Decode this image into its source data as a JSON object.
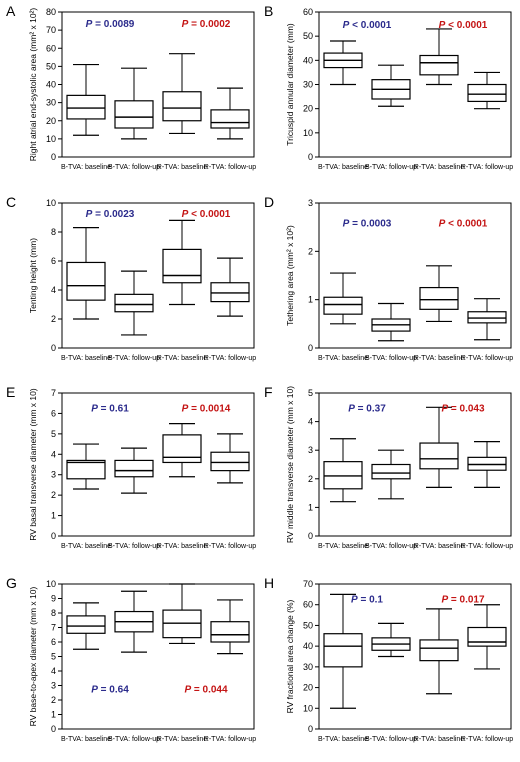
{
  "chart_data": [
    {
      "panel": "A",
      "type": "box",
      "ylabel": "Right atrial end-systolic area (mm² x 10²)",
      "ylim": [
        0,
        80
      ],
      "yticks": [
        0,
        10,
        20,
        30,
        40,
        50,
        60,
        70,
        80
      ],
      "categories": [
        "B-TVA: baseline",
        "B-TVA: follow-up",
        "R-TVA: baseline",
        "R-TVA: follow-up"
      ],
      "boxes": [
        {
          "min": 12,
          "q1": 21,
          "median": 27,
          "q3": 34,
          "max": 51
        },
        {
          "min": 10,
          "q1": 16,
          "median": 22,
          "q3": 31,
          "max": 49
        },
        {
          "min": 13,
          "q1": 20,
          "median": 27,
          "q3": 36,
          "max": 57
        },
        {
          "min": 10,
          "q1": 16,
          "median": 19,
          "q3": 26,
          "max": 38
        }
      ],
      "annotations": [
        {
          "text": "P = 0.0089",
          "group": "B-TVA",
          "color": "#2b2b8c",
          "y": 74
        },
        {
          "text": "P = 0.0002",
          "group": "R-TVA",
          "color": "#c41414",
          "y": 74
        }
      ]
    },
    {
      "panel": "B",
      "type": "box",
      "ylabel": "Tricuspid annular diameter (mm)",
      "ylim": [
        0,
        60
      ],
      "yticks": [
        0,
        10,
        20,
        30,
        40,
        50,
        60
      ],
      "categories": [
        "B-TVA: baseline",
        "B-TVA: follow-up",
        "R-TVA: baseline",
        "R-TVA: follow-up"
      ],
      "boxes": [
        {
          "min": 30,
          "q1": 37,
          "median": 40,
          "q3": 43,
          "max": 48
        },
        {
          "min": 21,
          "q1": 24,
          "median": 28,
          "q3": 32,
          "max": 38
        },
        {
          "min": 30,
          "q1": 34,
          "median": 39,
          "q3": 42,
          "max": 53
        },
        {
          "min": 20,
          "q1": 23,
          "median": 26,
          "q3": 30,
          "max": 35
        }
      ],
      "annotations": [
        {
          "text": "P < 0.0001",
          "group": "B-TVA",
          "color": "#2b2b8c",
          "y": 55
        },
        {
          "text": "P < 0.0001",
          "group": "R-TVA",
          "color": "#c41414",
          "y": 55
        }
      ]
    },
    {
      "panel": "C",
      "type": "box",
      "ylabel": "Tenting height (mm)",
      "ylim": [
        0,
        10
      ],
      "yticks": [
        0,
        2,
        4,
        6,
        8,
        10
      ],
      "categories": [
        "B-TVA: baseline",
        "B-TVA: follow-up",
        "R-TVA: baseline",
        "R-TVA: follow-up"
      ],
      "boxes": [
        {
          "min": 2.0,
          "q1": 3.3,
          "median": 4.3,
          "q3": 5.9,
          "max": 8.3
        },
        {
          "min": 0.9,
          "q1": 2.5,
          "median": 3.0,
          "q3": 3.7,
          "max": 5.3
        },
        {
          "min": 3.0,
          "q1": 4.5,
          "median": 5.0,
          "q3": 6.8,
          "max": 8.8
        },
        {
          "min": 2.2,
          "q1": 3.2,
          "median": 3.8,
          "q3": 4.5,
          "max": 6.2
        }
      ],
      "annotations": [
        {
          "text": "P = 0.0023",
          "group": "B-TVA",
          "color": "#2b2b8c",
          "y": 9.3
        },
        {
          "text": "P < 0.0001",
          "group": "R-TVA",
          "color": "#c41414",
          "y": 9.3
        }
      ]
    },
    {
      "panel": "D",
      "type": "box",
      "ylabel": "Tethering area (mm² x 10²)",
      "ylim": [
        0,
        3
      ],
      "yticks": [
        0,
        1,
        2,
        3
      ],
      "categories": [
        "B-TVA: baseline",
        "B-TVA: follow-up",
        "R-TVA: baseline",
        "R-TVA: follow-up"
      ],
      "boxes": [
        {
          "min": 0.5,
          "q1": 0.7,
          "median": 0.9,
          "q3": 1.05,
          "max": 1.55
        },
        {
          "min": 0.15,
          "q1": 0.35,
          "median": 0.48,
          "q3": 0.6,
          "max": 0.92
        },
        {
          "min": 0.55,
          "q1": 0.8,
          "median": 1.0,
          "q3": 1.25,
          "max": 1.7
        },
        {
          "min": 0.17,
          "q1": 0.52,
          "median": 0.62,
          "q3": 0.75,
          "max": 1.02
        }
      ],
      "annotations": [
        {
          "text": "P = 0.0003",
          "group": "B-TVA",
          "color": "#2b2b8c",
          "y": 2.6
        },
        {
          "text": "P < 0.0001",
          "group": "R-TVA",
          "color": "#c41414",
          "y": 2.6
        }
      ]
    },
    {
      "panel": "E",
      "type": "box",
      "ylabel": "RV basal transverse diameter (mm x 10)",
      "ylim": [
        0,
        7
      ],
      "yticks": [
        0,
        1,
        2,
        3,
        4,
        5,
        6,
        7
      ],
      "categories": [
        "B-TVA: baseline",
        "B-TVA: follow-up",
        "R-TVA: baseline",
        "R-TVA: follow-up"
      ],
      "boxes": [
        {
          "min": 2.3,
          "q1": 2.8,
          "median": 3.6,
          "q3": 3.7,
          "max": 4.5
        },
        {
          "min": 2.1,
          "q1": 2.9,
          "median": 3.2,
          "q3": 3.7,
          "max": 4.3
        },
        {
          "min": 2.9,
          "q1": 3.6,
          "median": 3.85,
          "q3": 4.95,
          "max": 5.5
        },
        {
          "min": 2.6,
          "q1": 3.2,
          "median": 3.6,
          "q3": 4.1,
          "max": 5.0
        }
      ],
      "annotations": [
        {
          "text": "P = 0.61",
          "group": "B-TVA",
          "color": "#2b2b8c",
          "y": 6.3
        },
        {
          "text": "P = 0.0014",
          "group": "R-TVA",
          "color": "#c41414",
          "y": 6.3
        }
      ]
    },
    {
      "panel": "F",
      "type": "box",
      "ylabel": "RV middle transverse diameter (mm x 10)",
      "ylim": [
        0,
        5
      ],
      "yticks": [
        0,
        1,
        2,
        3,
        4,
        5
      ],
      "categories": [
        "B-TVA: baseline",
        "B-TVA: follow-up",
        "R-TVA: baseline",
        "R-TVA: follow-up"
      ],
      "boxes": [
        {
          "min": 1.2,
          "q1": 1.65,
          "median": 2.1,
          "q3": 2.6,
          "max": 3.4
        },
        {
          "min": 1.3,
          "q1": 2.0,
          "median": 2.2,
          "q3": 2.5,
          "max": 3.0
        },
        {
          "min": 1.7,
          "q1": 2.35,
          "median": 2.7,
          "q3": 3.25,
          "max": 4.5
        },
        {
          "min": 1.7,
          "q1": 2.3,
          "median": 2.5,
          "q3": 2.75,
          "max": 3.3
        }
      ],
      "annotations": [
        {
          "text": "P = 0.37",
          "group": "B-TVA",
          "color": "#2b2b8c",
          "y": 4.5
        },
        {
          "text": "P = 0.043",
          "group": "R-TVA",
          "color": "#c41414",
          "y": 4.5
        }
      ]
    },
    {
      "panel": "G",
      "type": "box",
      "ylabel": "RV base-to-apex diameter (mm x 10)",
      "ylim": [
        0,
        10
      ],
      "yticks": [
        0,
        1,
        2,
        3,
        4,
        5,
        6,
        7,
        8,
        9,
        10
      ],
      "categories": [
        "B-TVA: baseline",
        "B-TVA: follow-up",
        "R-TVA: baseline",
        "R-TVA: follow-up"
      ],
      "boxes": [
        {
          "min": 5.5,
          "q1": 6.6,
          "median": 7.1,
          "q3": 7.8,
          "max": 8.7
        },
        {
          "min": 5.3,
          "q1": 6.7,
          "median": 7.4,
          "q3": 8.1,
          "max": 9.5
        },
        {
          "min": 5.9,
          "q1": 6.3,
          "median": 7.3,
          "q3": 8.2,
          "max": 10.0
        },
        {
          "min": 5.2,
          "q1": 6.0,
          "median": 6.5,
          "q3": 7.4,
          "max": 8.9
        }
      ],
      "annotations": [
        {
          "text": "P = 0.64",
          "group": "B-TVA",
          "color": "#2b2b8c",
          "y": 2.8
        },
        {
          "text": "P = 0.044",
          "group": "R-TVA",
          "color": "#c41414",
          "y": 2.8
        }
      ]
    },
    {
      "panel": "H",
      "type": "box",
      "ylabel": "RV fractional area change (%)",
      "ylim": [
        0,
        70
      ],
      "yticks": [
        0,
        10,
        20,
        30,
        40,
        50,
        60,
        70
      ],
      "categories": [
        "B-TVA: baseline",
        "B-TVA: follow-up",
        "R-TVA: baseline",
        "R-TVA: follow-up"
      ],
      "boxes": [
        {
          "min": 10,
          "q1": 30,
          "median": 40,
          "q3": 46,
          "max": 65
        },
        {
          "min": 35,
          "q1": 38,
          "median": 41,
          "q3": 44,
          "max": 51
        },
        {
          "min": 17,
          "q1": 33,
          "median": 39,
          "q3": 43,
          "max": 58
        },
        {
          "min": 29,
          "q1": 40,
          "median": 42,
          "q3": 49,
          "max": 60
        }
      ],
      "annotations": [
        {
          "text": "P = 0.1",
          "group": "B-TVA",
          "color": "#2b2b8c",
          "y": 63
        },
        {
          "text": "P = 0.017",
          "group": "R-TVA",
          "color": "#c41414",
          "y": 63
        }
      ]
    }
  ]
}
